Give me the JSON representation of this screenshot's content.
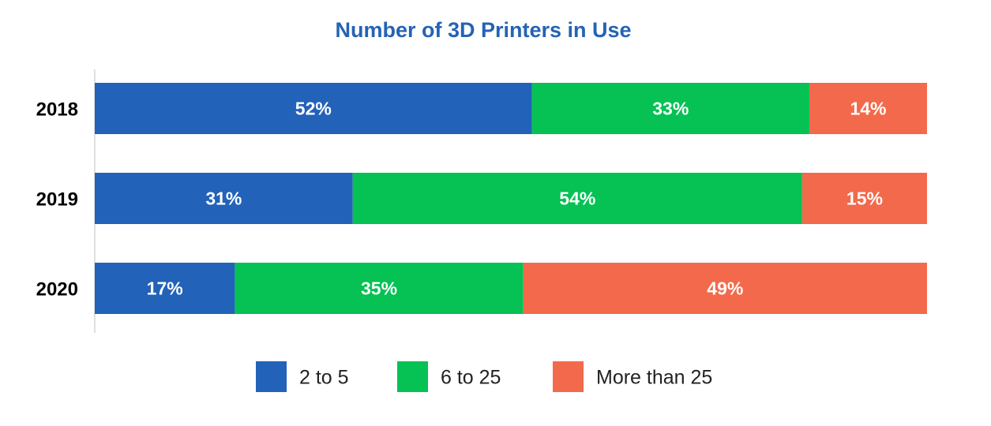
{
  "chart_data": {
    "type": "bar",
    "orientation": "horizontal",
    "stacked": true,
    "title": "Number of 3D Printers in Use",
    "categories": [
      "2018",
      "2019",
      "2020"
    ],
    "unit": "%",
    "series": [
      {
        "name": "2 to 5",
        "color": "#2262b8",
        "values": [
          52,
          31,
          17
        ]
      },
      {
        "name": "6 to 25",
        "color": "#06c154",
        "values": [
          33,
          54,
          35
        ]
      },
      {
        "name": "More than 25",
        "color": "#f26a4b",
        "values": [
          14,
          15,
          49
        ]
      }
    ],
    "legend_position": "bottom",
    "grid": false
  }
}
